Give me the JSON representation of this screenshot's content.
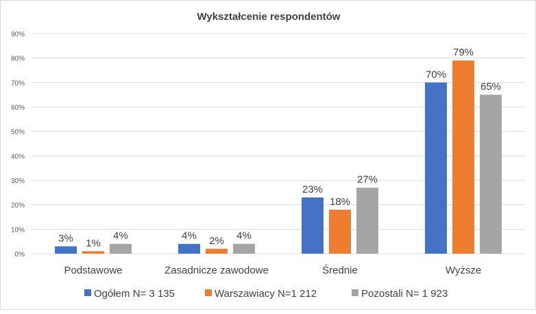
{
  "chart_data": {
    "type": "bar",
    "title": "Wykształcenie respondentów",
    "categories": [
      "Podstawowe",
      "Zasadnicze zawodowe",
      "Średnie",
      "Wyższe"
    ],
    "series": [
      {
        "name": "Ogółem N= 3 135",
        "values": [
          3,
          4,
          23,
          70
        ],
        "color": "#4472C4"
      },
      {
        "name": "Warszawiacy N=1 212",
        "values": [
          1,
          2,
          18,
          79
        ],
        "color": "#ED7D31"
      },
      {
        "name": "Pozostali N= 1 923",
        "values": [
          4,
          4,
          27,
          65
        ],
        "color": "#A5A5A5"
      }
    ],
    "yticks": [
      "0%",
      "10%",
      "20%",
      "30%",
      "40%",
      "50%",
      "60%",
      "70%",
      "80%",
      "90%"
    ],
    "ylim": [
      0,
      90
    ],
    "value_suffix": "%",
    "grid": true,
    "legend_position": "bottom"
  }
}
